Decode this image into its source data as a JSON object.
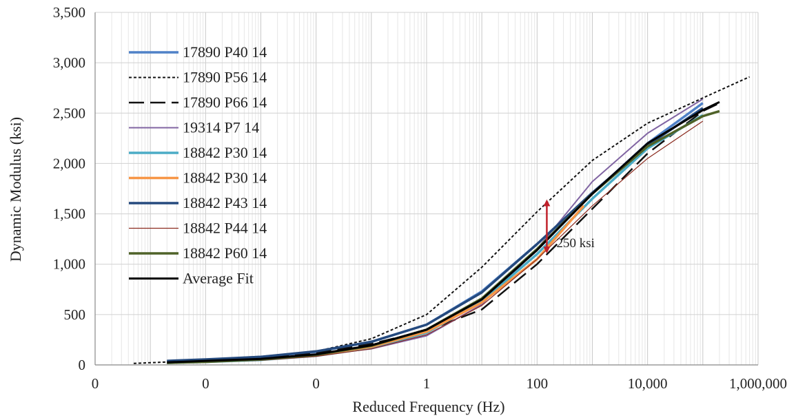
{
  "chart_data": {
    "type": "line",
    "title": "",
    "xlabel": "Reduced Frequency (Hz)",
    "ylabel": "Dynamic Modulus (ksi)",
    "x_scale": "log",
    "xlim": [
      1e-06,
      1000000
    ],
    "ylim": [
      0,
      3500
    ],
    "x_ticks": [
      1e-06,
      0.0001,
      0.01,
      1,
      100,
      10000,
      1000000
    ],
    "x_tick_labels": [
      "0",
      "0",
      "0",
      "1",
      "100",
      "10,000",
      "1,000,000"
    ],
    "y_ticks": [
      0,
      500,
      1000,
      1500,
      2000,
      2500,
      3000,
      3500
    ],
    "y_tick_labels": [
      "0",
      "500",
      "1,000",
      "1,500",
      "2,000",
      "2,500",
      "3,000",
      "3,500"
    ],
    "grid": true,
    "legend_position": "top-left",
    "series": [
      {
        "name": "17890 P40 14",
        "color": "#4f81c7",
        "width": 3.5,
        "dash": "",
        "x": [
          2e-05,
          0.0001,
          0.001,
          0.01,
          0.1,
          1,
          10,
          100,
          1000,
          10000,
          100000
        ],
        "y": [
          35,
          50,
          80,
          130,
          230,
          400,
          730,
          1200,
          1700,
          2200,
          2600
        ]
      },
      {
        "name": "17890 P56 14",
        "color": "#111111",
        "width": 2,
        "dash": "4,3",
        "x": [
          5e-06,
          0.0001,
          0.001,
          0.01,
          0.1,
          1,
          10,
          100,
          1000,
          10000,
          100000,
          700000
        ],
        "y": [
          15,
          45,
          75,
          135,
          260,
          500,
          970,
          1520,
          2030,
          2400,
          2650,
          2860
        ]
      },
      {
        "name": "17890 P66 14",
        "color": "#111111",
        "width": 2.5,
        "dash": "22,9",
        "x": [
          2e-05,
          0.0001,
          0.001,
          0.01,
          0.1,
          1,
          10,
          100,
          1000,
          10000,
          100000,
          200000
        ],
        "y": [
          30,
          45,
          70,
          120,
          210,
          340,
          550,
          1000,
          1550,
          2100,
          2520,
          2600
        ]
      },
      {
        "name": "19314 P7 14",
        "color": "#8064a2",
        "width": 2,
        "dash": "",
        "x": [
          2e-05,
          0.0001,
          0.001,
          0.01,
          0.1,
          1,
          10,
          100,
          1000,
          10000,
          100000
        ],
        "y": [
          30,
          40,
          60,
          95,
          160,
          290,
          600,
          1150,
          1820,
          2300,
          2640
        ]
      },
      {
        "name": "18842 P30 14",
        "color": "#4bacc6",
        "width": 3.5,
        "dash": "",
        "x": [
          2e-05,
          0.0001,
          0.001,
          0.01,
          0.1,
          1,
          10,
          100,
          1000,
          10000,
          100000
        ],
        "y": [
          20,
          30,
          50,
          90,
          170,
          320,
          630,
          1100,
          1650,
          2150,
          2480
        ]
      },
      {
        "name": "18842 P30 14",
        "color": "#f79646",
        "width": 3.5,
        "dash": "",
        "x": [
          2e-05,
          0.0001,
          0.001,
          0.01,
          0.1,
          1,
          10,
          100,
          700
        ],
        "y": [
          25,
          35,
          55,
          100,
          180,
          330,
          620,
          1050,
          1580
        ]
      },
      {
        "name": "18842 P43 14",
        "color": "#254a7e",
        "width": 3.5,
        "dash": "",
        "x": [
          2e-05,
          0.0001,
          0.001,
          0.01,
          0.1,
          1,
          10,
          100,
          1000,
          10000,
          100000
        ],
        "y": [
          40,
          55,
          80,
          135,
          230,
          400,
          720,
          1200,
          1710,
          2180,
          2550
        ]
      },
      {
        "name": "18842 P44 14",
        "color": "#8b2a1e",
        "width": 1.2,
        "dash": "",
        "x": [
          2e-05,
          0.0001,
          0.001,
          0.01,
          0.1,
          1,
          10,
          100,
          1000,
          10000,
          100000
        ],
        "y": [
          15,
          25,
          45,
          85,
          160,
          300,
          590,
          1050,
          1580,
          2050,
          2420
        ]
      },
      {
        "name": "18842 P60 14",
        "color": "#4f6228",
        "width": 3.5,
        "dash": "",
        "x": [
          2e-05,
          0.0001,
          0.001,
          0.01,
          0.1,
          1,
          10,
          100,
          1000,
          10000,
          100000,
          200000
        ],
        "y": [
          20,
          30,
          55,
          100,
          190,
          350,
          660,
          1150,
          1700,
          2170,
          2470,
          2520
        ]
      },
      {
        "name": "Average Fit",
        "color": "#000000",
        "width": 3,
        "dash": "",
        "x": [
          2e-05,
          0.0001,
          0.001,
          0.01,
          0.1,
          1,
          10,
          100,
          1000,
          10000,
          100000,
          200000
        ],
        "y": [
          25,
          40,
          60,
          105,
          195,
          350,
          650,
          1140,
          1700,
          2200,
          2530,
          2610
        ]
      }
    ],
    "annotations": [
      {
        "text": "250 ksi",
        "x": 150,
        "y_from": 1100,
        "y_to": 1650,
        "color": "#c0202a"
      }
    ]
  }
}
